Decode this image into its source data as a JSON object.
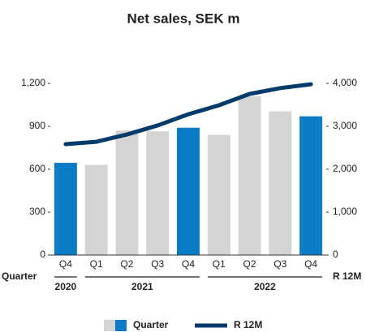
{
  "chart_data": {
    "type": "bar_line",
    "title": "Net sales, SEK m",
    "categories": [
      "Q4",
      "Q1",
      "Q2",
      "Q3",
      "Q4",
      "Q1",
      "Q2",
      "Q3",
      "Q4"
    ],
    "x_groups": [
      {
        "label": "2020",
        "count": 1
      },
      {
        "label": "2021",
        "count": 4
      },
      {
        "label": "2022",
        "count": 4
      }
    ],
    "x_label": "Quarter",
    "y2_label": "R 12M",
    "series": [
      {
        "name": "Quarter",
        "type": "bar",
        "color": "#d4d4d4",
        "colors": [
          "#0a7bc4",
          "#d4d4d4",
          "#d4d4d4",
          "#d4d4d4",
          "#0a7bc4",
          "#d4d4d4",
          "#d4d4d4",
          "#d4d4d4",
          "#0a7bc4"
        ],
        "values": [
          645,
          630,
          870,
          865,
          890,
          840,
          1110,
          1005,
          970
        ]
      },
      {
        "name": "R 12M",
        "type": "line",
        "axis": "y2",
        "color": "#003a6b",
        "values": [
          2585,
          2640,
          2810,
          3020,
          3280,
          3490,
          3755,
          3890,
          3980
        ]
      }
    ],
    "ylim": [
      0,
      1200
    ],
    "yticks": [
      0,
      300,
      600,
      900,
      {
        "value": 1200,
        "label": "1,200"
      }
    ],
    "y2lim": [
      0,
      4000
    ],
    "y2ticks": [
      0,
      {
        "value": 1000,
        "label": "1,000"
      },
      {
        "value": 2000,
        "label": "2,000"
      },
      {
        "value": 3000,
        "label": "3,000"
      },
      {
        "value": 4000,
        "label": "4,000"
      }
    ],
    "grid": false,
    "legend": "bottom"
  }
}
